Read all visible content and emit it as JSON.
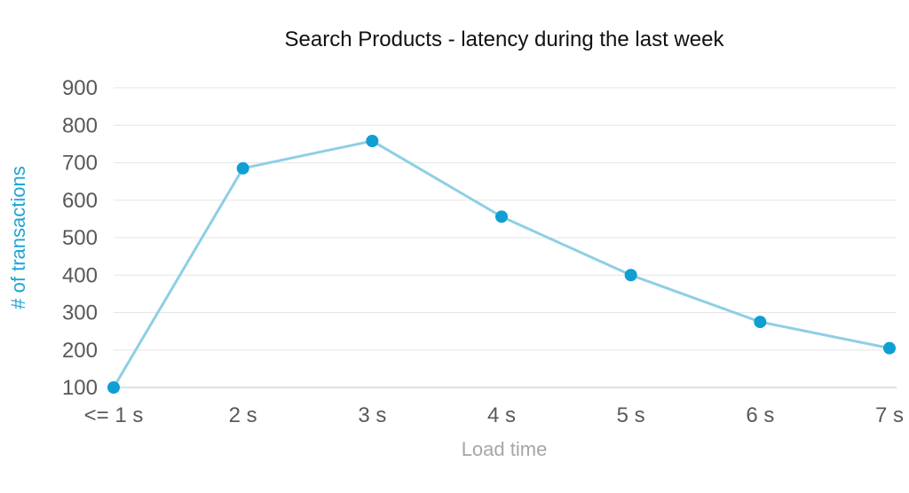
{
  "chart_data": {
    "type": "line",
    "title": "Search Products - latency during the last week",
    "xlabel": "Load time",
    "ylabel": "# of transactions",
    "categories": [
      "<= 1 s",
      "2 s",
      "3 s",
      "4 s",
      "5 s",
      "6 s",
      "7 s"
    ],
    "series": [
      {
        "values": [
          100,
          685,
          758,
          556,
          400,
          275,
          205
        ]
      }
    ],
    "ylim": [
      100,
      900
    ],
    "yticks": [
      100,
      200,
      300,
      400,
      500,
      600,
      700,
      800,
      900
    ],
    "grid": true,
    "legend": "none",
    "colors": {
      "line": "#8ecfe4",
      "marker": "#0f9fd3"
    }
  }
}
